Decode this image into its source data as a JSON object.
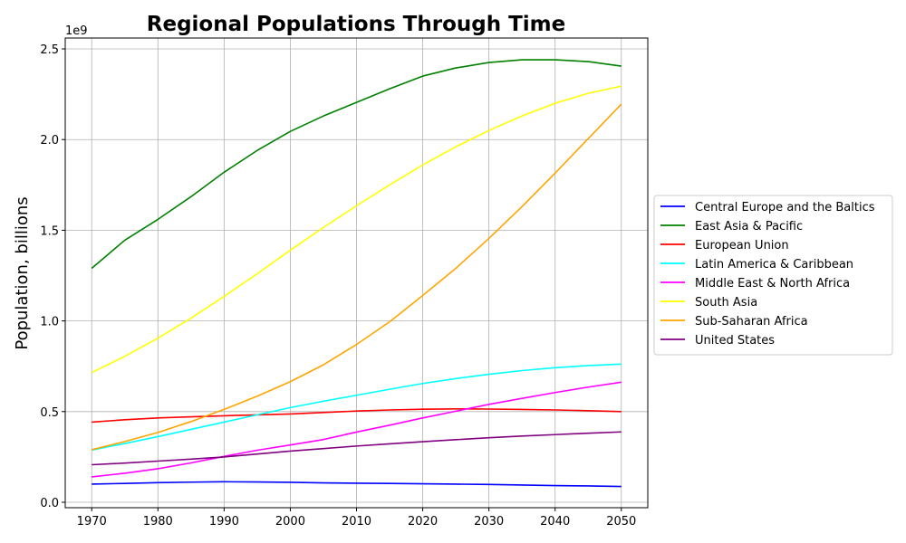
{
  "chart_data": {
    "type": "line",
    "title": "Regional Populations Through Time",
    "xlabel": "",
    "ylabel": "Population, billions",
    "y_offset_label": "1e9",
    "x": [
      1970,
      1975,
      1980,
      1985,
      1990,
      1995,
      2000,
      2005,
      2010,
      2015,
      2020,
      2025,
      2030,
      2035,
      2040,
      2045,
      2050
    ],
    "xlim": [
      1966,
      2054
    ],
    "ylim": [
      -30000000,
      2560000000
    ],
    "x_ticks": [
      1970,
      1980,
      1990,
      2000,
      2010,
      2020,
      2030,
      2040,
      2050
    ],
    "x_tick_labels": [
      "1970",
      "1980",
      "1990",
      "2000",
      "2010",
      "2020",
      "2030",
      "2040",
      "2050"
    ],
    "y_ticks": [
      0,
      500000000,
      1000000000,
      1500000000,
      2000000000,
      2500000000
    ],
    "y_tick_labels": [
      "0.0",
      "0.5",
      "1.0",
      "1.5",
      "2.0",
      "2.5"
    ],
    "grid": true,
    "legend_position": "right",
    "series": [
      {
        "name": "Central Europe and the Baltics",
        "color": "#0000ff",
        "values": [
          100000000,
          104000000,
          108000000,
          111000000,
          113000000,
          112000000,
          110000000,
          107000000,
          105000000,
          104000000,
          102000000,
          100000000,
          98000000,
          95000000,
          92000000,
          90000000,
          87000000
        ]
      },
      {
        "name": "East Asia & Pacific",
        "color": "#008000",
        "values": [
          1290000000,
          1445000000,
          1560000000,
          1685000000,
          1820000000,
          1940000000,
          2045000000,
          2130000000,
          2205000000,
          2280000000,
          2350000000,
          2395000000,
          2425000000,
          2440000000,
          2440000000,
          2430000000,
          2405000000
        ]
      },
      {
        "name": "European Union",
        "color": "#ff0000",
        "values": [
          442000000,
          455000000,
          465000000,
          471000000,
          477000000,
          482000000,
          487000000,
          495000000,
          503000000,
          509000000,
          513000000,
          515000000,
          514000000,
          512000000,
          509000000,
          505000000,
          500000000
        ]
      },
      {
        "name": "Latin America & Caribbean",
        "color": "#00ffff",
        "values": [
          288000000,
          324000000,
          362000000,
          402000000,
          442000000,
          482000000,
          522000000,
          557000000,
          590000000,
          623000000,
          655000000,
          682000000,
          706000000,
          726000000,
          742000000,
          754000000,
          762000000
        ]
      },
      {
        "name": "Middle East & North Africa",
        "color": "#ff00ff",
        "values": [
          140000000,
          160000000,
          185000000,
          217000000,
          253000000,
          287000000,
          316000000,
          346000000,
          387000000,
          425000000,
          465000000,
          502000000,
          540000000,
          573000000,
          605000000,
          635000000,
          662000000
        ]
      },
      {
        "name": "South Asia",
        "color": "#ffff00",
        "values": [
          715000000,
          805000000,
          905000000,
          1015000000,
          1135000000,
          1260000000,
          1390000000,
          1515000000,
          1635000000,
          1750000000,
          1860000000,
          1960000000,
          2050000000,
          2130000000,
          2200000000,
          2255000000,
          2295000000
        ]
      },
      {
        "name": "Sub-Saharan Africa",
        "color": "#ffa500",
        "values": [
          290000000,
          335000000,
          385000000,
          445000000,
          512000000,
          585000000,
          665000000,
          758000000,
          870000000,
          995000000,
          1140000000,
          1290000000,
          1455000000,
          1630000000,
          1815000000,
          2005000000,
          2195000000
        ]
      },
      {
        "name": "United States",
        "color": "#800080",
        "values": [
          207000000,
          216000000,
          227000000,
          238000000,
          250000000,
          266000000,
          282000000,
          296000000,
          310000000,
          322000000,
          334000000,
          345000000,
          356000000,
          365000000,
          373000000,
          381000000,
          388000000
        ]
      }
    ]
  }
}
